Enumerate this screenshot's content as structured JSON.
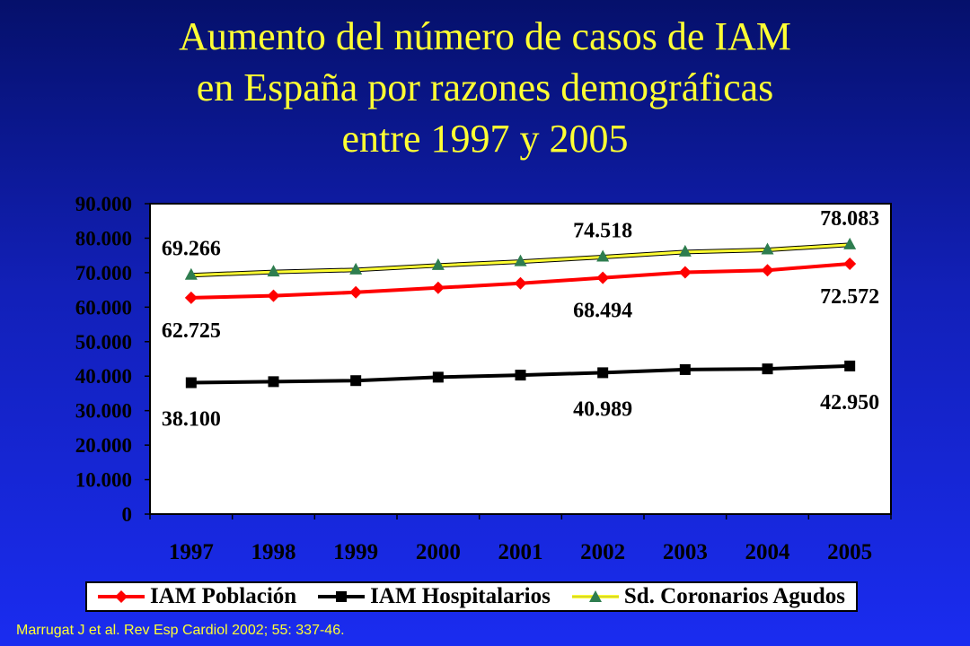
{
  "title_lines": [
    "Aumento del número de casos de IAM",
    "en España por razones demográficas",
    "entre 1997 y 2005"
  ],
  "source": "Marrugat J et al. Rev Esp Cardiol 2002; 55: 337-46.",
  "colors": {
    "background": "#1220b8",
    "title": "#ffff33",
    "plot_area": "#ffffff",
    "iam_poblacion": "#ff0000",
    "iam_hospitalarios": "#000000",
    "sd_coronarios": "#ffff33",
    "sd_coronarios_marker": "#2e7d4f"
  },
  "chart_data": {
    "type": "line",
    "title": "Aumento del número de casos de IAM en España por razones demográficas entre 1997 y 2005",
    "xlabel": "",
    "ylabel": "",
    "categories": [
      "1997",
      "1998",
      "1999",
      "2000",
      "2001",
      "2002",
      "2003",
      "2004",
      "2005"
    ],
    "ylim": [
      0,
      90000
    ],
    "yticks": [
      0,
      10000,
      20000,
      30000,
      40000,
      50000,
      60000,
      70000,
      80000,
      90000
    ],
    "ytick_labels": [
      "0",
      "10.000",
      "20.000",
      "30.000",
      "40.000",
      "50.000",
      "60.000",
      "70.000",
      "80.000",
      "90.000"
    ],
    "grid": false,
    "legend_position": "bottom",
    "series": [
      {
        "name": "IAM Población",
        "marker": "diamond",
        "values": [
          62725,
          63300,
          64300,
          65600,
          66900,
          68494,
          70100,
          70700,
          72572
        ]
      },
      {
        "name": "IAM Hospitalarios",
        "marker": "square",
        "values": [
          38100,
          38400,
          38700,
          39700,
          40300,
          40989,
          41900,
          42100,
          42950
        ]
      },
      {
        "name": "Sd. Coronarios Agudos",
        "marker": "triangle",
        "values": [
          69266,
          70200,
          70800,
          72100,
          73200,
          74518,
          76000,
          76600,
          78083
        ]
      }
    ],
    "data_labels": [
      {
        "series": 0,
        "index": 0,
        "text": "62.725"
      },
      {
        "series": 0,
        "index": 5,
        "text": "68.494"
      },
      {
        "series": 0,
        "index": 8,
        "text": "72.572"
      },
      {
        "series": 1,
        "index": 0,
        "text": "38.100"
      },
      {
        "series": 1,
        "index": 5,
        "text": "40.989"
      },
      {
        "series": 1,
        "index": 8,
        "text": "42.950"
      },
      {
        "series": 2,
        "index": 0,
        "text": "69.266"
      },
      {
        "series": 2,
        "index": 5,
        "text": "74.518"
      },
      {
        "series": 2,
        "index": 8,
        "text": "78.083"
      }
    ]
  }
}
